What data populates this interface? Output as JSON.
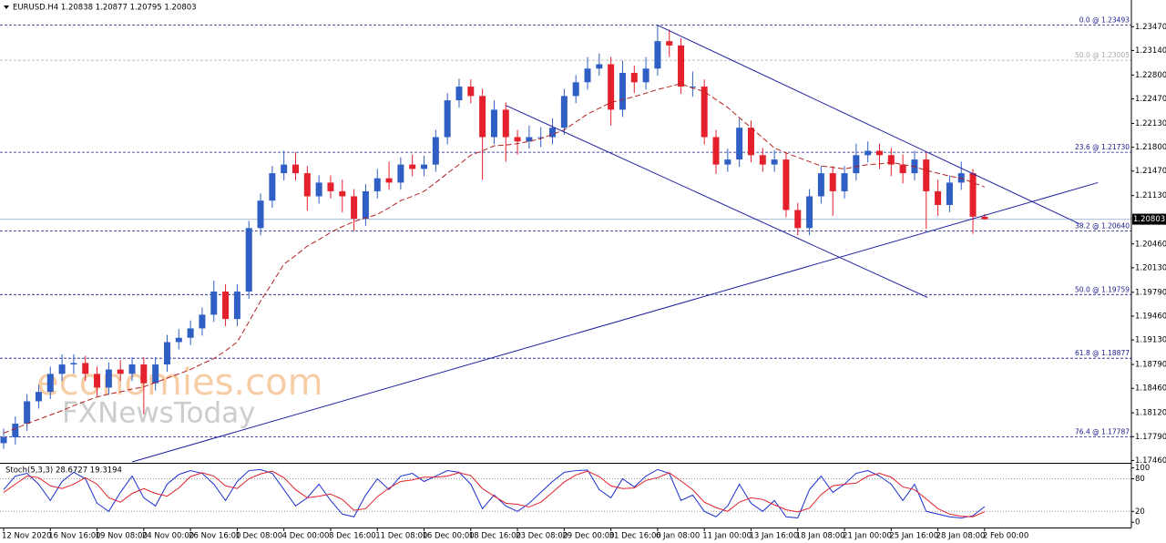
{
  "chart_data": [
    {
      "type": "candlestick",
      "title": "EURUSD.H4 1.20838 1.20877 1.20795 1.20803",
      "categories": [
        "12 Nov 2020",
        null,
        null,
        null,
        "16 Nov 16:00",
        null,
        null,
        null,
        "19 Nov 08:00",
        null,
        null,
        null,
        "24 Nov 00:00",
        null,
        null,
        null,
        "26 Nov 16:00",
        null,
        null,
        null,
        "1 Dec 08:00",
        null,
        null,
        null,
        "4 Dec 00:00",
        null,
        null,
        null,
        "8 Dec 16:00",
        null,
        null,
        null,
        "11 Dec 08:00",
        null,
        null,
        null,
        "16 Dec 00:00",
        null,
        null,
        null,
        "18 Dec 16:00",
        null,
        null,
        null,
        "23 Dec 08:00",
        null,
        null,
        null,
        "29 Dec 00:00",
        null,
        null,
        null,
        "31 Dec 16:00",
        null,
        null,
        null,
        "6 Jan 08:00",
        null,
        null,
        null,
        "11 Jan 00:00",
        null,
        null,
        null,
        "13 Jan 16:00",
        null,
        null,
        null,
        "18 Jan 08:00",
        null,
        null,
        null,
        "21 Jan 00:00",
        null,
        null,
        null,
        "25 Jan 16:00",
        null,
        null,
        null,
        "28 Jan 08:00",
        null,
        null,
        null,
        "2 Feb 00:00"
      ],
      "open": [
        1.177,
        1.1778,
        1.1797,
        1.1828,
        1.1841,
        1.1866,
        1.1879,
        1.1881,
        1.1866,
        1.1847,
        1.1872,
        1.1866,
        1.1879,
        1.1853,
        1.1879,
        1.191,
        1.1916,
        1.1929,
        1.1948,
        1.198,
        1.1942,
        1.198,
        1.2068,
        1.2106,
        1.2144,
        1.2156,
        1.2144,
        1.2112,
        1.2131,
        1.2119,
        1.2112,
        1.2081,
        1.2119,
        1.2137,
        1.2131,
        1.2156,
        1.215,
        1.2156,
        1.2194,
        1.2245,
        1.2264,
        1.2251,
        1.2194,
        1.2232,
        1.2194,
        1.2188,
        1.2194,
        1.2194,
        1.2207,
        1.2251,
        1.227,
        1.2289,
        1.2295,
        1.2232,
        1.2283,
        1.227,
        1.2289,
        1.2327,
        1.2321,
        1.2264,
        1.2264,
        1.2194,
        1.2156,
        1.2163,
        1.2207,
        1.2169,
        1.2156,
        1.2163,
        1.2093,
        1.2068,
        1.2112,
        1.2144,
        1.2119,
        1.2144,
        1.2169,
        1.2175,
        1.2169,
        1.2156,
        1.2144,
        1.2163,
        1.2119,
        1.21,
        1.2131,
        1.2144,
        1.20838
      ],
      "high": [
        1.179,
        1.1807,
        1.1838,
        1.1851,
        1.1876,
        1.1893,
        1.1893,
        1.1891,
        1.1876,
        1.1882,
        1.1885,
        1.1889,
        1.1889,
        1.1889,
        1.192,
        1.1928,
        1.194,
        1.1958,
        1.1995,
        1.199,
        1.199,
        1.2078,
        1.2116,
        1.2154,
        1.2175,
        1.2173,
        1.2154,
        1.2141,
        1.2141,
        1.2135,
        1.2122,
        1.2129,
        1.215,
        1.216,
        1.2166,
        1.217,
        1.2168,
        1.2204,
        1.2255,
        1.2275,
        1.2274,
        1.2261,
        1.2245,
        1.2242,
        1.2204,
        1.221,
        1.2208,
        1.222,
        1.2261,
        1.228,
        1.2305,
        1.231,
        1.2305,
        1.23,
        1.2293,
        1.2305,
        1.2349,
        1.2343,
        1.2331,
        1.2285,
        1.2274,
        1.2204,
        1.2178,
        1.222,
        1.2217,
        1.2179,
        1.2176,
        1.2173,
        1.2103,
        1.2122,
        1.2154,
        1.2154,
        1.2154,
        1.2185,
        1.2188,
        1.2185,
        1.2179,
        1.217,
        1.2175,
        1.2173,
        1.2135,
        1.2141,
        1.216,
        1.215,
        1.20877
      ],
      "low": [
        1.1762,
        1.1768,
        1.1787,
        1.1818,
        1.1831,
        1.1856,
        1.1866,
        1.1856,
        1.1835,
        1.1837,
        1.1856,
        1.1856,
        1.181,
        1.1843,
        1.1869,
        1.19,
        1.1906,
        1.1919,
        1.1938,
        1.1932,
        1.1932,
        1.197,
        1.2058,
        1.2096,
        1.2134,
        1.2134,
        1.2092,
        1.2102,
        1.2109,
        1.209,
        1.2064,
        1.2071,
        1.2109,
        1.2121,
        1.2121,
        1.214,
        1.214,
        1.2146,
        1.2184,
        1.2235,
        1.2241,
        1.2135,
        1.2184,
        1.216,
        1.217,
        1.2178,
        1.218,
        1.2184,
        1.2197,
        1.2241,
        1.226,
        1.2279,
        1.221,
        1.2222,
        1.2255,
        1.226,
        1.2279,
        1.2305,
        1.2254,
        1.225,
        1.2184,
        1.2143,
        1.2146,
        1.2153,
        1.2159,
        1.2146,
        1.2146,
        1.2083,
        1.2058,
        1.2058,
        1.2102,
        1.2085,
        1.2109,
        1.2134,
        1.2159,
        1.215,
        1.214,
        1.213,
        1.2134,
        1.2067,
        1.2085,
        1.209,
        1.2121,
        1.206,
        1.20795
      ],
      "close": [
        1.1778,
        1.1797,
        1.1828,
        1.1841,
        1.1866,
        1.1879,
        1.1881,
        1.1866,
        1.1847,
        1.1872,
        1.1866,
        1.1879,
        1.1853,
        1.1879,
        1.191,
        1.1916,
        1.1929,
        1.1948,
        1.198,
        1.1942,
        1.198,
        1.2068,
        1.2106,
        1.2144,
        1.2156,
        1.2144,
        1.2112,
        1.2131,
        1.2119,
        1.2112,
        1.2081,
        1.2119,
        1.2137,
        1.2131,
        1.2156,
        1.215,
        1.2156,
        1.2194,
        1.2245,
        1.2264,
        1.2251,
        1.2194,
        1.2232,
        1.2194,
        1.2188,
        1.2194,
        1.2194,
        1.2207,
        1.2251,
        1.227,
        1.2289,
        1.2295,
        1.2232,
        1.2283,
        1.227,
        1.2289,
        1.2327,
        1.2321,
        1.2264,
        1.2264,
        1.2194,
        1.2156,
        1.2163,
        1.2207,
        1.2169,
        1.2156,
        1.2163,
        1.2093,
        1.2068,
        1.2112,
        1.2144,
        1.2119,
        1.2144,
        1.2169,
        1.2175,
        1.2169,
        1.2156,
        1.2144,
        1.2163,
        1.2119,
        1.21,
        1.2131,
        1.2144,
        1.20838,
        1.20803
      ],
      "up_color": "#2f5fc4",
      "down_color": "#e3202c",
      "moving_average": {
        "color": "#b22222",
        "values": [
          1.1784,
          1.179,
          1.1797,
          1.1803,
          1.1809,
          1.1815,
          1.1822,
          1.1828,
          1.1834,
          1.1838,
          1.1841,
          1.1845,
          1.1848,
          1.1854,
          1.186,
          1.1866,
          1.1872,
          1.188,
          1.1887,
          1.1898,
          1.191,
          1.1938,
          1.1967,
          1.1992,
          1.2018,
          1.203,
          1.2043,
          1.2052,
          1.2062,
          1.207,
          1.2077,
          1.2082,
          1.2087,
          1.2096,
          1.2106,
          1.2112,
          1.2119,
          1.2131,
          1.2144,
          1.2156,
          1.2169,
          1.2175,
          1.2182,
          1.2183,
          1.2185,
          1.2188,
          1.2192,
          1.2198,
          1.2204,
          1.2215,
          1.2226,
          1.2234,
          1.2242,
          1.2246,
          1.225,
          1.2255,
          1.226,
          1.2264,
          1.2268,
          1.2262,
          1.2257,
          1.2246,
          1.2235,
          1.2221,
          1.2207,
          1.2193,
          1.2179,
          1.2172,
          1.2166,
          1.216,
          1.2154,
          1.2152,
          1.215,
          1.2153,
          1.2156,
          1.2157,
          1.2159,
          1.2156,
          1.2153,
          1.2148,
          1.2144,
          1.214,
          1.2137,
          1.2131,
          1.2125
        ]
      },
      "ylim": [
        1.1744,
        1.2384
      ],
      "yticks": [
        {
          "value": 1.2347,
          "label": "1.23470"
        },
        {
          "value": 1.2314,
          "label": "1.23140"
        },
        {
          "value": 1.228,
          "label": "1.22800"
        },
        {
          "value": 1.2247,
          "label": "1.22470"
        },
        {
          "value": 1.2213,
          "label": "1.22130"
        },
        {
          "value": 1.218,
          "label": "1.21800"
        },
        {
          "value": 1.2147,
          "label": "1.21470"
        },
        {
          "value": 1.2113,
          "label": "1.21130"
        },
        {
          "value": 1.2046,
          "label": "1.20460"
        },
        {
          "value": 1.2013,
          "label": "1.20130"
        },
        {
          "value": 1.1979,
          "label": "1.19790"
        },
        {
          "value": 1.1946,
          "label": "1.19460"
        },
        {
          "value": 1.1913,
          "label": "1.19130"
        },
        {
          "value": 1.1879,
          "label": "1.18790"
        },
        {
          "value": 1.1846,
          "label": "1.18460"
        },
        {
          "value": 1.1812,
          "label": "1.18120"
        },
        {
          "value": 1.1779,
          "label": "1.17790"
        },
        {
          "value": 1.1746,
          "label": "1.17460"
        }
      ],
      "current_price": 1.20803,
      "fib_levels": [
        {
          "value": 1.23493,
          "label": "0.0 @ 1.23493",
          "color": "#1a1a8c"
        },
        {
          "value": 1.23005,
          "label": "50.0 @ 1.23005",
          "color": "#aaaaaa"
        },
        {
          "value": 1.2173,
          "label": "23.6 @ 1.21730",
          "color": "#1a1a8c"
        },
        {
          "value": 1.2064,
          "label": "38.2 @ 1.20640",
          "color": "#1a1a8c"
        },
        {
          "value": 1.19759,
          "label": "50.0 @ 1.19759",
          "color": "#1a1a8c"
        },
        {
          "value": 1.18877,
          "label": "61.8 @ 1.18877",
          "color": "#1a1a8c"
        },
        {
          "value": 1.17787,
          "label": "76.4 @ 1.17787",
          "color": "#1a1a8c"
        }
      ],
      "trendlines": [
        {
          "from": [
            56,
            1.2349
          ],
          "to": [
            92.1,
            1.2074
          ],
          "color": "#2020a0"
        },
        {
          "from": [
            43,
            1.2238
          ],
          "to": [
            79.1,
            1.1972
          ],
          "color": "#2020a0"
        },
        {
          "from": [
            11,
            1.1744
          ],
          "to": [
            93.7,
            1.2131
          ],
          "color": "#2020a0"
        }
      ]
    },
    {
      "type": "line",
      "title": "Stoch(5,3,3) 28.6727 19.3194",
      "ylim": [
        -8,
        106
      ],
      "yticks": [
        100,
        80,
        20,
        0
      ],
      "levels": [
        80,
        20
      ],
      "series": [
        {
          "color": "#1c2fd0",
          "values": [
            60,
            85,
            90,
            70,
            40,
            75,
            92,
            80,
            35,
            20,
            55,
            85,
            45,
            30,
            70,
            88,
            95,
            90,
            70,
            40,
            75,
            95,
            97,
            90,
            60,
            30,
            45,
            70,
            40,
            15,
            10,
            50,
            80,
            60,
            85,
            90,
            75,
            85,
            95,
            92,
            70,
            25,
            50,
            30,
            20,
            35,
            55,
            75,
            92,
            95,
            96,
            60,
            45,
            80,
            65,
            85,
            97,
            90,
            40,
            50,
            20,
            10,
            30,
            70,
            35,
            20,
            40,
            10,
            8,
            60,
            85,
            55,
            70,
            90,
            95,
            85,
            70,
            40,
            70,
            20,
            15,
            10,
            8,
            12,
            28.6727
          ]
        },
        {
          "color": "#e3202c",
          "values": [
            55,
            70,
            85,
            82,
            67,
            62,
            70,
            82,
            70,
            45,
            37,
            53,
            62,
            53,
            48,
            63,
            84,
            91,
            85,
            67,
            62,
            80,
            89,
            94,
            82,
            60,
            45,
            48,
            52,
            42,
            22,
            25,
            47,
            63,
            75,
            78,
            83,
            83,
            85,
            91,
            86,
            62,
            48,
            35,
            33,
            28,
            37,
            55,
            74,
            87,
            94,
            84,
            67,
            62,
            63,
            77,
            82,
            91,
            76,
            60,
            37,
            27,
            20,
            37,
            45,
            42,
            32,
            23,
            19,
            26,
            51,
            67,
            70,
            72,
            85,
            90,
            83,
            65,
            60,
            43,
            25,
            15,
            11,
            10,
            19.3194
          ]
        }
      ]
    }
  ],
  "watermark": [
    "economies.com",
    "FXNewsToday"
  ]
}
